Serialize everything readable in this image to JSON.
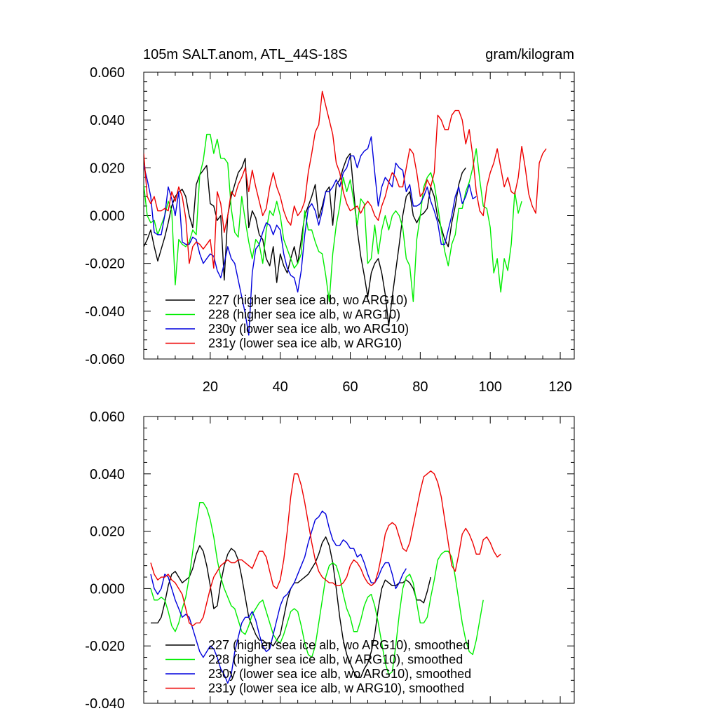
{
  "chart_data": [
    {
      "type": "line",
      "title": "105m SALT.anom, ATL_44S-18S",
      "units": "gram/kilogram",
      "xlim": [
        1,
        124
      ],
      "ylim": [
        -0.06,
        0.06
      ],
      "x_ticks": [
        20,
        40,
        60,
        80,
        100,
        120
      ],
      "x_tick_labels": [
        "20",
        "40",
        "60",
        "80",
        "100",
        "120"
      ],
      "y_ticks": [
        -0.06,
        -0.04,
        -0.02,
        0.0,
        0.02,
        0.04,
        0.06
      ],
      "y_tick_labels": [
        "-0.060",
        "-0.040",
        "-0.020",
        "0.000",
        "0.020",
        "0.040",
        "0.060"
      ],
      "grid": false,
      "legend_position": "bottom-left",
      "series": [
        {
          "name": "227 (higher sea ice alb, wo ARG10)",
          "color": "#000000",
          "x_start": 1,
          "values": [
            -0.013,
            -0.01,
            -0.006,
            -0.013,
            -0.019,
            -0.014,
            -0.009,
            -0.003,
            0.004,
            0.008,
            0.01,
            0.011,
            0.008,
            0.0,
            -0.005,
            0.013,
            0.017,
            0.019,
            0.021,
            0.005,
            0.004,
            -0.002,
            0.0,
            -0.027,
            0.0,
            0.008,
            0.013,
            0.018,
            0.02,
            0.024,
            -0.005,
            0.002,
            -0.001,
            -0.008,
            -0.01,
            -0.018,
            -0.021,
            -0.013,
            -0.028,
            -0.016,
            -0.021,
            -0.024,
            -0.018,
            -0.013,
            -0.02,
            -0.01,
            0.0,
            0.004,
            0.008,
            0.013,
            -0.001,
            0.004,
            0.01,
            0.012,
            -0.004,
            0.013,
            0.015,
            0.02,
            0.024,
            0.026,
            0.01,
            -0.006,
            -0.017,
            -0.025,
            -0.034,
            -0.024,
            -0.02,
            -0.018,
            -0.024,
            -0.033,
            -0.046,
            -0.034,
            -0.023,
            -0.012,
            0.0,
            0.008,
            0.01,
            0.0,
            -0.003,
            0.0,
            0.001,
            0.003,
            0.012,
            0.008,
            -0.001,
            -0.005,
            -0.01,
            -0.013,
            -0.003,
            0.004,
            0.013,
            0.018,
            0.02
          ]
        },
        {
          "name": "228 (higher sea ice alb, w ARG10)",
          "color": "#00ee00",
          "x_start": 1,
          "values": [
            0.013,
            0.0,
            -0.003,
            -0.002,
            -0.008,
            -0.004,
            0.0,
            0.006,
            0.002,
            -0.029,
            -0.01,
            -0.012,
            -0.013,
            -0.011,
            -0.006,
            -0.008,
            0.017,
            0.023,
            0.034,
            0.034,
            0.026,
            0.032,
            0.024,
            0.024,
            0.022,
            0.003,
            -0.007,
            -0.009,
            0.008,
            -0.002,
            -0.011,
            -0.018,
            -0.01,
            -0.012,
            -0.02,
            -0.006,
            0.002,
            0.0,
            0.006,
            0.0,
            -0.01,
            -0.014,
            -0.018,
            -0.022,
            -0.02,
            -0.016,
            0.002,
            -0.006,
            -0.006,
            -0.011,
            -0.015,
            -0.016,
            -0.025,
            -0.036,
            -0.016,
            -0.004,
            0.004,
            0.016,
            0.01,
            0.015,
            0.006,
            -0.004,
            0.007,
            0.005,
            -0.02,
            -0.018,
            -0.004,
            -0.016,
            -0.006,
            0.0,
            -0.006,
            0.0,
            0.002,
            0.0,
            -0.005,
            -0.018,
            -0.021,
            -0.036,
            -0.01,
            0.0,
            0.012,
            0.016,
            0.018,
            0.013,
            0.004,
            -0.006,
            -0.015,
            -0.021,
            -0.012,
            -0.008,
            0.003,
            0.003,
            0.01,
            0.014,
            0.02,
            0.028,
            0.015,
            0.004,
            0.003,
            -0.005,
            -0.024,
            -0.018,
            -0.032,
            -0.018,
            -0.023,
            -0.012,
            0.01,
            0.001,
            0.006
          ]
        },
        {
          "name": "230y (lower sea ice alb, wo ARG10)",
          "color": "#0000dd",
          "x_start": 1,
          "values": [
            0.021,
            0.015,
            0.008,
            -0.007,
            -0.008,
            -0.008,
            0.0,
            0.012,
            0.007,
            0.0,
            0.01,
            -0.011,
            -0.012,
            -0.012,
            -0.009,
            -0.01,
            -0.016,
            -0.02,
            -0.018,
            -0.016,
            -0.017,
            -0.023,
            -0.026,
            -0.02,
            -0.013,
            -0.018,
            -0.02,
            -0.027,
            -0.034,
            -0.041,
            -0.05,
            -0.024,
            -0.014,
            -0.012,
            -0.007,
            -0.003,
            -0.004,
            -0.008,
            -0.004,
            -0.006,
            -0.016,
            -0.022,
            -0.025,
            -0.026,
            -0.032,
            -0.023,
            -0.008,
            0.003,
            0.005,
            0.002,
            -0.004,
            0.002,
            0.01,
            0.01,
            0.012,
            0.015,
            0.012,
            0.018,
            0.02,
            0.025,
            0.025,
            0.02,
            0.025,
            0.027,
            0.028,
            0.033,
            0.018,
            0.004,
            0.012,
            0.016,
            0.014,
            0.012,
            0.022,
            0.02,
            0.019,
            0.01,
            0.013,
            0.004,
            0.004,
            0.005,
            0.008,
            0.012,
            0.006,
            0.002,
            -0.003,
            -0.012,
            -0.012,
            -0.006,
            0.0,
            0.008,
            0.012,
            0.005,
            0.008,
            0.013,
            0.007,
            0.008
          ]
        },
        {
          "name": "231y (lower sea ice alb, w ARG10)",
          "color": "#ee0000",
          "x_start": 1,
          "values": [
            0.026,
            0.008,
            0.005,
            0.008,
            0.002,
            0.002,
            0.003,
            0.002,
            0.01,
            0.006,
            0.012,
            0.008,
            -0.001,
            -0.02,
            -0.013,
            -0.011,
            -0.012,
            -0.014,
            -0.012,
            -0.01,
            -0.022,
            0.01,
            0.005,
            -0.007,
            0.0,
            0.01,
            0.008,
            0.013,
            0.016,
            0.02,
            0.01,
            0.019,
            0.012,
            0.006,
            0.0,
            0.003,
            0.012,
            0.018,
            0.012,
            0.008,
            0.002,
            -0.002,
            -0.004,
            0.004,
            0.0,
            0.002,
            0.006,
            0.018,
            0.026,
            0.035,
            0.038,
            0.052,
            0.046,
            0.04,
            0.034,
            0.022,
            0.018,
            0.01,
            0.005,
            0.002,
            0.003,
            0.004,
            0.001,
            0.004,
            0.006,
            0.004,
            0.0,
            -0.002,
            0.004,
            0.008,
            0.014,
            0.018,
            0.016,
            0.012,
            0.012,
            0.02,
            0.028,
            0.026,
            0.018,
            0.008,
            0.01,
            0.015,
            0.012,
            0.018,
            0.042,
            0.04,
            0.036,
            0.036,
            0.042,
            0.044,
            0.044,
            0.04,
            0.03,
            0.036,
            0.025,
            0.01,
            0.002,
            0.0,
            0.012,
            0.018,
            0.022,
            0.028,
            0.02,
            0.012,
            0.016,
            0.01,
            0.009,
            0.016,
            0.029,
            0.02,
            0.009,
            0.004,
            0.001,
            0.022,
            0.026,
            0.028
          ]
        }
      ]
    },
    {
      "type": "line",
      "xlim": [
        1,
        124
      ],
      "ylim": [
        -0.04,
        0.06
      ],
      "x_ticks": [
        20,
        40,
        60,
        80,
        100,
        120
      ],
      "y_ticks": [
        -0.04,
        -0.02,
        0.0,
        0.02,
        0.04,
        0.06
      ],
      "y_tick_labels": [
        "-0.040",
        "-0.020",
        "0.000",
        "0.020",
        "0.040",
        "0.060"
      ],
      "grid": false,
      "legend_position": "bottom-left",
      "series": [
        {
          "name": "227 (higher sea ice alb, wo ARG10), smoothed",
          "color": "#000000",
          "x_start": 3,
          "values": [
            -0.012,
            -0.012,
            -0.012,
            -0.01,
            -0.005,
            0.001,
            0.005,
            0.006,
            0.004,
            0.002,
            0.003,
            0.004,
            0.007,
            0.012,
            0.015,
            0.013,
            0.008,
            0.001,
            -0.007,
            -0.006,
            0.002,
            0.008,
            0.012,
            0.014,
            0.013,
            0.01,
            0.004,
            -0.003,
            -0.01,
            -0.013,
            -0.016,
            -0.018,
            -0.018,
            -0.019,
            -0.019,
            -0.02,
            -0.018,
            -0.016,
            -0.01,
            -0.004,
            0.0,
            0.002,
            0.002,
            0.003,
            0.004,
            0.005,
            0.007,
            0.009,
            0.012,
            0.016,
            0.018,
            0.015,
            0.009,
            0.0,
            -0.01,
            -0.018,
            -0.023,
            -0.026,
            -0.029,
            -0.031,
            -0.031,
            -0.028,
            -0.026,
            -0.022,
            -0.016,
            -0.007,
            0.0,
            0.003,
            0.002,
            0.001,
            0.001,
            0.002,
            0.002,
            0.003,
            0.002,
            0.0,
            -0.004,
            -0.004,
            -0.005,
            -0.001,
            0.004
          ]
        },
        {
          "name": "228 (higher sea ice alb, w ARG10), smoothed",
          "color": "#00ee00",
          "x_start": 3,
          "values": [
            0.0,
            -0.004,
            -0.004,
            -0.003,
            -0.004,
            -0.008,
            -0.013,
            -0.015,
            -0.012,
            -0.007,
            -0.003,
            0.004,
            0.013,
            0.022,
            0.03,
            0.03,
            0.028,
            0.024,
            0.018,
            0.01,
            0.004,
            0.0,
            -0.003,
            -0.006,
            -0.007,
            -0.011,
            -0.015,
            -0.016,
            -0.013,
            -0.009,
            -0.007,
            -0.005,
            -0.004,
            -0.008,
            -0.012,
            -0.016,
            -0.018,
            -0.019,
            -0.016,
            -0.012,
            -0.008,
            -0.007,
            -0.008,
            -0.013,
            -0.019,
            -0.023,
            -0.024,
            -0.02,
            -0.012,
            -0.004,
            0.004,
            0.008,
            0.009,
            0.008,
            0.004,
            -0.002,
            -0.007,
            -0.01,
            -0.015,
            -0.015,
            -0.011,
            -0.006,
            -0.003,
            -0.002,
            -0.006,
            -0.012,
            -0.019,
            -0.026,
            -0.03,
            -0.029,
            -0.02,
            -0.009,
            0.0,
            0.004,
            0.005,
            0.002,
            -0.005,
            -0.012,
            -0.012,
            -0.01,
            -0.003,
            0.003,
            0.01,
            0.012,
            0.013,
            0.013,
            0.011,
            0.004,
            -0.004,
            -0.012,
            -0.018,
            -0.022,
            -0.023,
            -0.018,
            -0.011,
            -0.004
          ]
        },
        {
          "name": "230y (lower sea ice alb, wo ARG10), smoothed",
          "color": "#0000dd",
          "x_start": 3,
          "values": [
            0.005,
            0.0,
            -0.002,
            0.0,
            0.005,
            0.004,
            0.0,
            -0.004,
            -0.007,
            -0.01,
            -0.009,
            -0.01,
            -0.014,
            -0.018,
            -0.022,
            -0.024,
            -0.022,
            -0.02,
            -0.021,
            -0.024,
            -0.028,
            -0.03,
            -0.033,
            -0.03,
            -0.022,
            -0.017,
            -0.012,
            -0.01,
            -0.01,
            -0.008,
            -0.011,
            -0.016,
            -0.02,
            -0.022,
            -0.021,
            -0.016,
            -0.011,
            -0.006,
            -0.003,
            -0.002,
            0.0,
            0.002,
            0.005,
            0.008,
            0.011,
            0.016,
            0.02,
            0.024,
            0.025,
            0.027,
            0.026,
            0.021,
            0.017,
            0.015,
            0.015,
            0.017,
            0.016,
            0.014,
            0.014,
            0.011,
            0.012,
            0.009,
            0.005,
            0.002,
            0.002,
            0.004,
            0.007,
            0.009,
            0.009,
            0.005,
            0.0,
            0.002,
            0.005,
            0.007
          ]
        },
        {
          "name": "231y (lower sea ice alb, w ARG10), smoothed",
          "color": "#ee0000",
          "x_start": 3,
          "values": [
            0.009,
            0.005,
            0.003,
            0.004,
            0.004,
            0.005,
            0.003,
            0.002,
            0.0,
            -0.002,
            -0.007,
            -0.012,
            -0.013,
            -0.012,
            -0.012,
            -0.01,
            -0.005,
            0.0,
            0.004,
            0.006,
            0.008,
            0.009,
            0.01,
            0.009,
            0.009,
            0.01,
            0.01,
            0.009,
            0.008,
            0.007,
            0.01,
            0.013,
            0.013,
            0.011,
            0.006,
            0.001,
            0.0,
            0.003,
            0.01,
            0.02,
            0.032,
            0.04,
            0.04,
            0.036,
            0.03,
            0.023,
            0.016,
            0.01,
            0.006,
            0.004,
            0.003,
            0.002,
            0.002,
            0.001,
            0.001,
            0.002,
            0.004,
            0.008,
            0.01,
            0.009,
            0.007,
            0.004,
            0.002,
            0.001,
            0.002,
            0.006,
            0.012,
            0.019,
            0.022,
            0.023,
            0.022,
            0.018,
            0.014,
            0.013,
            0.016,
            0.022,
            0.028,
            0.034,
            0.039,
            0.04,
            0.041,
            0.04,
            0.037,
            0.032,
            0.024,
            0.016,
            0.008,
            0.006,
            0.012,
            0.019,
            0.021,
            0.019,
            0.016,
            0.012,
            0.012,
            0.017,
            0.018,
            0.016,
            0.013,
            0.011,
            0.012
          ]
        }
      ]
    }
  ]
}
